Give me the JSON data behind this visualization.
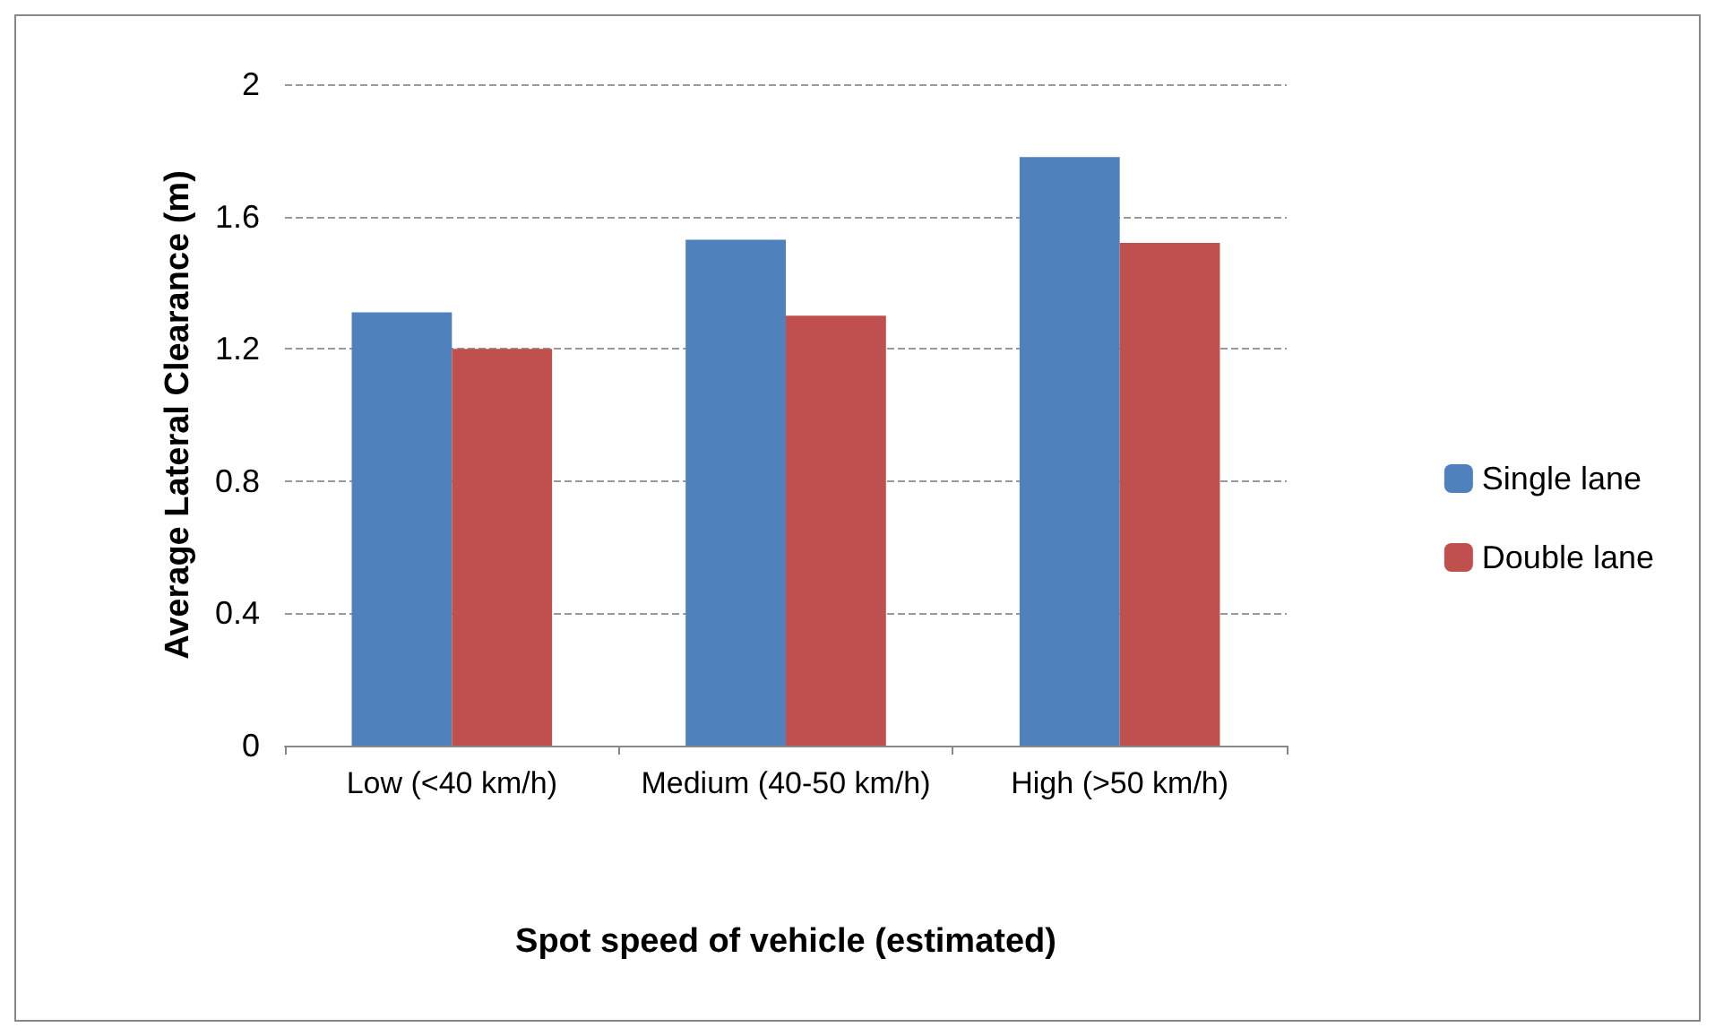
{
  "chart_data": {
    "type": "bar",
    "xlabel": "Spot speed of vehicle (estimated)",
    "ylabel": "Average Lateral Clearance (m)",
    "categories": [
      "Low (<40 km/h)",
      "Medium (40-50 km/h)",
      "High (>50 km/h)"
    ],
    "series": [
      {
        "name": "Single lane",
        "color": "#4f81bd",
        "values": [
          1.31,
          1.53,
          1.78
        ]
      },
      {
        "name": "Double lane",
        "color": "#c0504d",
        "values": [
          1.2,
          1.3,
          1.52
        ]
      }
    ],
    "ylim": [
      0,
      2
    ],
    "yticks": [
      0,
      0.4,
      0.8,
      1.2,
      1.6,
      2
    ],
    "grid": "y",
    "legend": "right"
  }
}
